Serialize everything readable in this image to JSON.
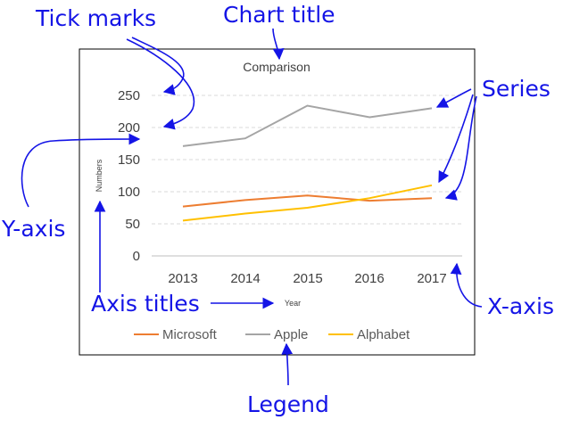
{
  "annotations": {
    "tick_marks": "Tick marks",
    "chart_title": "Chart title",
    "series": "Series",
    "y_axis": "Y-axis",
    "axis_titles": "Axis titles",
    "x_axis": "X-axis",
    "legend": "Legend"
  },
  "chart_data": {
    "type": "line",
    "title": "Comparison",
    "xlabel": "Year",
    "ylabel": "Numbers",
    "categories": [
      "2013",
      "2014",
      "2015",
      "2016",
      "2017"
    ],
    "yticks": [
      "0",
      "50",
      "100",
      "150",
      "200",
      "250"
    ],
    "ylim": [
      0,
      250
    ],
    "grid": true,
    "legend_position": "bottom",
    "series": [
      {
        "name": "Microsoft",
        "color": "#ed7d31",
        "values": [
          77,
          87,
          94,
          86,
          90
        ]
      },
      {
        "name": "Apple",
        "color": "#a5a5a5",
        "values": [
          171,
          183,
          234,
          216,
          230
        ]
      },
      {
        "name": "Alphabet",
        "color": "#ffc000",
        "values": [
          55,
          66,
          75,
          90,
          110
        ]
      }
    ]
  },
  "colors": {
    "annotation": "#1414e6",
    "axis": "#404040",
    "grid": "#d9d9d9"
  }
}
